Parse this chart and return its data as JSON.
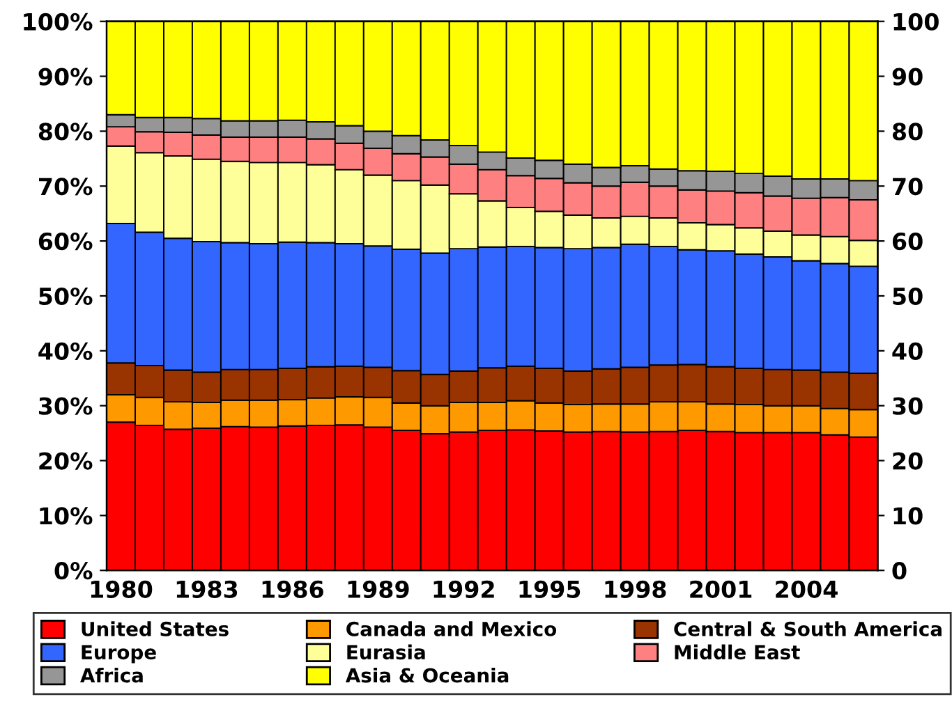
{
  "chart_data": {
    "type": "bar",
    "stacked": true,
    "categories": [
      "1980",
      null,
      null,
      "1983",
      null,
      null,
      "1986",
      null,
      null,
      "1989",
      null,
      null,
      "1992",
      null,
      null,
      "1995",
      null,
      null,
      "1998",
      null,
      null,
      "2001",
      null,
      null,
      "2004",
      null,
      null
    ],
    "series": [
      {
        "name": "United States",
        "color": "#ff0000",
        "values": [
          27.0,
          26.4,
          25.7,
          25.9,
          26.2,
          26.1,
          26.3,
          26.4,
          26.5,
          26.1,
          25.5,
          24.9,
          25.2,
          25.5,
          25.6,
          25.4,
          25.2,
          25.3,
          25.2,
          25.3,
          25.5,
          25.3,
          25.1,
          25.1,
          25.1,
          24.7,
          24.3
        ]
      },
      {
        "name": "Canada and Mexico",
        "color": "#ff9900",
        "values": [
          5.0,
          5.1,
          5.0,
          4.7,
          4.8,
          4.9,
          4.8,
          5.0,
          5.1,
          5.4,
          5.0,
          5.1,
          5.4,
          5.1,
          5.3,
          5.1,
          5.0,
          5.0,
          5.1,
          5.4,
          5.2,
          5.0,
          5.1,
          4.9,
          4.9,
          4.8,
          5.0
        ]
      },
      {
        "name": "Central & South America",
        "color": "#993300",
        "values": [
          5.8,
          5.8,
          5.8,
          5.5,
          5.6,
          5.6,
          5.7,
          5.7,
          5.6,
          5.5,
          5.9,
          5.7,
          5.7,
          6.3,
          6.3,
          6.3,
          6.1,
          6.4,
          6.7,
          6.7,
          6.8,
          6.8,
          6.6,
          6.6,
          6.5,
          6.6,
          6.6
        ]
      },
      {
        "name": "Europe",
        "color": "#3366ff",
        "values": [
          25.4,
          24.3,
          24.0,
          23.8,
          23.1,
          22.9,
          23.0,
          22.6,
          22.3,
          22.1,
          22.1,
          22.1,
          22.3,
          22.0,
          21.8,
          22.0,
          22.3,
          22.1,
          22.4,
          21.6,
          20.9,
          21.1,
          20.8,
          20.5,
          19.9,
          19.8,
          19.5
        ]
      },
      {
        "name": "Eurasia",
        "color": "#ffff99",
        "values": [
          14.1,
          14.5,
          15.0,
          15.0,
          14.8,
          14.8,
          14.5,
          14.2,
          13.5,
          12.9,
          12.5,
          12.4,
          10.0,
          8.4,
          7.1,
          6.6,
          6.1,
          5.4,
          5.1,
          5.2,
          4.9,
          4.8,
          4.8,
          4.7,
          4.7,
          4.9,
          4.7
        ]
      },
      {
        "name": "Middle East",
        "color": "#ff8080",
        "values": [
          3.5,
          3.8,
          4.3,
          4.4,
          4.4,
          4.6,
          4.6,
          4.7,
          4.8,
          4.9,
          4.9,
          5.1,
          5.4,
          5.7,
          5.8,
          6.0,
          5.9,
          5.8,
          6.2,
          5.8,
          6.0,
          6.1,
          6.4,
          6.4,
          6.7,
          7.1,
          7.4
        ]
      },
      {
        "name": "Africa",
        "color": "#969696",
        "values": [
          2.2,
          2.6,
          2.7,
          3.0,
          3.0,
          3.0,
          3.1,
          3.1,
          3.2,
          3.1,
          3.3,
          3.1,
          3.4,
          3.2,
          3.2,
          3.3,
          3.4,
          3.4,
          3.0,
          3.1,
          3.5,
          3.6,
          3.5,
          3.6,
          3.5,
          3.4,
          3.5
        ]
      },
      {
        "name": "Asia & Oceania",
        "color": "#ffff00",
        "values": [
          17.0,
          17.5,
          17.5,
          17.7,
          18.1,
          18.1,
          18.0,
          18.3,
          19.0,
          20.0,
          20.8,
          21.6,
          22.6,
          23.8,
          24.9,
          25.3,
          26.0,
          26.6,
          26.3,
          26.9,
          27.2,
          27.3,
          27.7,
          28.2,
          28.7,
          28.7,
          29.0
        ]
      }
    ],
    "ylim": [
      0,
      100
    ],
    "yticks": [
      {
        "value": 0,
        "label": "0%"
      },
      {
        "value": 10,
        "label": "10%"
      },
      {
        "value": 20,
        "label": "20%"
      },
      {
        "value": 30,
        "label": "30%"
      },
      {
        "value": 40,
        "label": "40%"
      },
      {
        "value": 50,
        "label": "50%"
      },
      {
        "value": 60,
        "label": "60%"
      },
      {
        "value": 70,
        "label": "70%"
      },
      {
        "value": 80,
        "label": "80%"
      },
      {
        "value": 90,
        "label": "90%"
      },
      {
        "value": 100,
        "label": "100%"
      }
    ],
    "y2lim": [
      0,
      100
    ],
    "y2ticks": [
      0,
      10,
      20,
      30,
      40,
      50,
      60,
      70,
      80,
      90,
      100
    ],
    "legend": "bottom",
    "grid": false
  }
}
